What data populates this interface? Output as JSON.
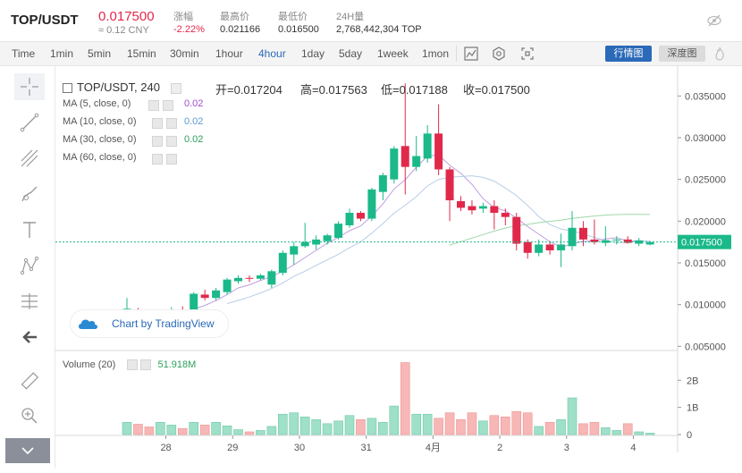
{
  "header": {
    "pair": "TOP/USDT",
    "price": "0.017500",
    "cny": "≈ 0.12 CNY",
    "stats": [
      {
        "label": "涨幅",
        "value": "-2.22%",
        "color": "red"
      },
      {
        "label": "最高价",
        "value": "0.021166"
      },
      {
        "label": "最低价",
        "value": "0.016500"
      },
      {
        "label": "24H量",
        "value": "2,768,442,304 TOP"
      }
    ]
  },
  "toolbar": {
    "timeframes": [
      "Time",
      "1min",
      "5min",
      "15min",
      "30min",
      "1hour",
      "4hour",
      "1day",
      "5day",
      "1week",
      "1mon"
    ],
    "active_timeframe": "4hour",
    "market_btn": "行情图",
    "depth_btn": "深度图"
  },
  "legend": {
    "title": "TOP/USDT, 240",
    "open": "开=0.017204",
    "high": "高=0.017563",
    "low": "低=0.017188",
    "close": "收=0.017500",
    "ma": [
      {
        "label": "MA (5, close, 0)",
        "value": "0.02",
        "color": "#a04fcf"
      },
      {
        "label": "MA (10, close, 0)",
        "value": "0.02",
        "color": "#5a9bd4"
      },
      {
        "label": "MA (30, close, 0)",
        "value": "0.02",
        "color": "#2ca05a"
      },
      {
        "label": "MA (60, close, 0)",
        "value": "",
        "color": "#555555"
      }
    ],
    "watermark": "Chart by TradingView",
    "volume_label": "Volume (20)",
    "volume_value": "51.918M"
  },
  "chart_data": {
    "type": "candlestick",
    "price_axis": {
      "ticks": [
        "0.035000",
        "0.030000",
        "0.025000",
        "0.020000",
        "0.015000",
        "0.010000",
        "0.005000"
      ],
      "range": [
        0.0045,
        0.0375
      ]
    },
    "current_price_label": "0.017500",
    "x_ticks": [
      "28",
      "29",
      "30",
      "31",
      "4月",
      "2",
      "3",
      "4"
    ],
    "volume_axis": {
      "ticks": [
        "2B",
        "1B",
        "0"
      ],
      "max": 2.7
    },
    "candles": [
      {
        "o": 0.0083,
        "h": 0.0108,
        "l": 0.0068,
        "c": 0.0095
      },
      {
        "o": 0.0093,
        "h": 0.0096,
        "l": 0.0087,
        "c": 0.009
      },
      {
        "o": 0.0091,
        "h": 0.0094,
        "l": 0.0083,
        "c": 0.0086
      },
      {
        "o": 0.0085,
        "h": 0.0092,
        "l": 0.0083,
        "c": 0.0088
      },
      {
        "o": 0.0088,
        "h": 0.0097,
        "l": 0.0084,
        "c": 0.0094
      },
      {
        "o": 0.0094,
        "h": 0.0098,
        "l": 0.0088,
        "c": 0.0092
      },
      {
        "o": 0.009,
        "h": 0.0115,
        "l": 0.0088,
        "c": 0.0113
      },
      {
        "o": 0.0112,
        "h": 0.0118,
        "l": 0.0105,
        "c": 0.0108
      },
      {
        "o": 0.0108,
        "h": 0.012,
        "l": 0.0105,
        "c": 0.0117
      },
      {
        "o": 0.0115,
        "h": 0.0132,
        "l": 0.0112,
        "c": 0.013
      },
      {
        "o": 0.0128,
        "h": 0.0135,
        "l": 0.0125,
        "c": 0.0132
      },
      {
        "o": 0.0132,
        "h": 0.0135,
        "l": 0.0127,
        "c": 0.0131
      },
      {
        "o": 0.0131,
        "h": 0.0137,
        "l": 0.0129,
        "c": 0.0135
      },
      {
        "o": 0.0124,
        "h": 0.0142,
        "l": 0.012,
        "c": 0.014
      },
      {
        "o": 0.0138,
        "h": 0.0165,
        "l": 0.0135,
        "c": 0.0162
      },
      {
        "o": 0.016,
        "h": 0.0175,
        "l": 0.0148,
        "c": 0.017
      },
      {
        "o": 0.017,
        "h": 0.0198,
        "l": 0.0168,
        "c": 0.0175
      },
      {
        "o": 0.0172,
        "h": 0.0183,
        "l": 0.0166,
        "c": 0.0178
      },
      {
        "o": 0.0176,
        "h": 0.0185,
        "l": 0.0172,
        "c": 0.0183
      },
      {
        "o": 0.018,
        "h": 0.02,
        "l": 0.0178,
        "c": 0.0197
      },
      {
        "o": 0.0195,
        "h": 0.0215,
        "l": 0.0192,
        "c": 0.021
      },
      {
        "o": 0.021,
        "h": 0.0212,
        "l": 0.02,
        "c": 0.0203
      },
      {
        "o": 0.0203,
        "h": 0.024,
        "l": 0.02,
        "c": 0.0238
      },
      {
        "o": 0.0235,
        "h": 0.0258,
        "l": 0.0225,
        "c": 0.0255
      },
      {
        "o": 0.025,
        "h": 0.029,
        "l": 0.0245,
        "c": 0.0287
      },
      {
        "o": 0.029,
        "h": 0.0365,
        "l": 0.0232,
        "c": 0.0265
      },
      {
        "o": 0.0265,
        "h": 0.0302,
        "l": 0.026,
        "c": 0.0278
      },
      {
        "o": 0.0275,
        "h": 0.0315,
        "l": 0.027,
        "c": 0.0305
      },
      {
        "o": 0.0305,
        "h": 0.034,
        "l": 0.0255,
        "c": 0.0262
      },
      {
        "o": 0.0262,
        "h": 0.0265,
        "l": 0.02,
        "c": 0.0225
      },
      {
        "o": 0.0224,
        "h": 0.023,
        "l": 0.0212,
        "c": 0.0216
      },
      {
        "o": 0.0218,
        "h": 0.0225,
        "l": 0.0208,
        "c": 0.0213
      },
      {
        "o": 0.0215,
        "h": 0.0222,
        "l": 0.021,
        "c": 0.0218
      },
      {
        "o": 0.0218,
        "h": 0.0225,
        "l": 0.019,
        "c": 0.021
      },
      {
        "o": 0.021,
        "h": 0.0215,
        "l": 0.0195,
        "c": 0.0205
      },
      {
        "o": 0.0205,
        "h": 0.021,
        "l": 0.0165,
        "c": 0.0173
      },
      {
        "o": 0.0175,
        "h": 0.0178,
        "l": 0.0155,
        "c": 0.0162
      },
      {
        "o": 0.0162,
        "h": 0.0178,
        "l": 0.0158,
        "c": 0.0172
      },
      {
        "o": 0.0172,
        "h": 0.0176,
        "l": 0.016,
        "c": 0.0165
      },
      {
        "o": 0.0165,
        "h": 0.0185,
        "l": 0.0145,
        "c": 0.0172
      },
      {
        "o": 0.017,
        "h": 0.0212,
        "l": 0.0165,
        "c": 0.0192
      },
      {
        "o": 0.0192,
        "h": 0.02,
        "l": 0.017,
        "c": 0.0178
      },
      {
        "o": 0.0178,
        "h": 0.0202,
        "l": 0.0172,
        "c": 0.0175
      },
      {
        "o": 0.0174,
        "h": 0.0194,
        "l": 0.017,
        "c": 0.0177
      },
      {
        "o": 0.0177,
        "h": 0.0182,
        "l": 0.0172,
        "c": 0.0178
      },
      {
        "o": 0.0178,
        "h": 0.0182,
        "l": 0.0173,
        "c": 0.0174
      },
      {
        "o": 0.0173,
        "h": 0.018,
        "l": 0.017,
        "c": 0.0177
      },
      {
        "o": 0.0172,
        "h": 0.0176,
        "l": 0.0171,
        "c": 0.0175
      }
    ],
    "volumes": [
      0.45,
      0.38,
      0.28,
      0.45,
      0.35,
      0.22,
      0.45,
      0.35,
      0.45,
      0.32,
      0.18,
      0.1,
      0.15,
      0.3,
      0.75,
      0.8,
      0.65,
      0.55,
      0.4,
      0.5,
      0.7,
      0.55,
      0.6,
      0.45,
      1.05,
      2.65,
      0.75,
      0.75,
      0.6,
      0.8,
      0.55,
      0.8,
      0.5,
      0.7,
      0.65,
      0.85,
      0.8,
      0.3,
      0.45,
      0.55,
      1.35,
      0.4,
      0.45,
      0.25,
      0.15,
      0.4,
      0.1,
      0.05
    ]
  }
}
